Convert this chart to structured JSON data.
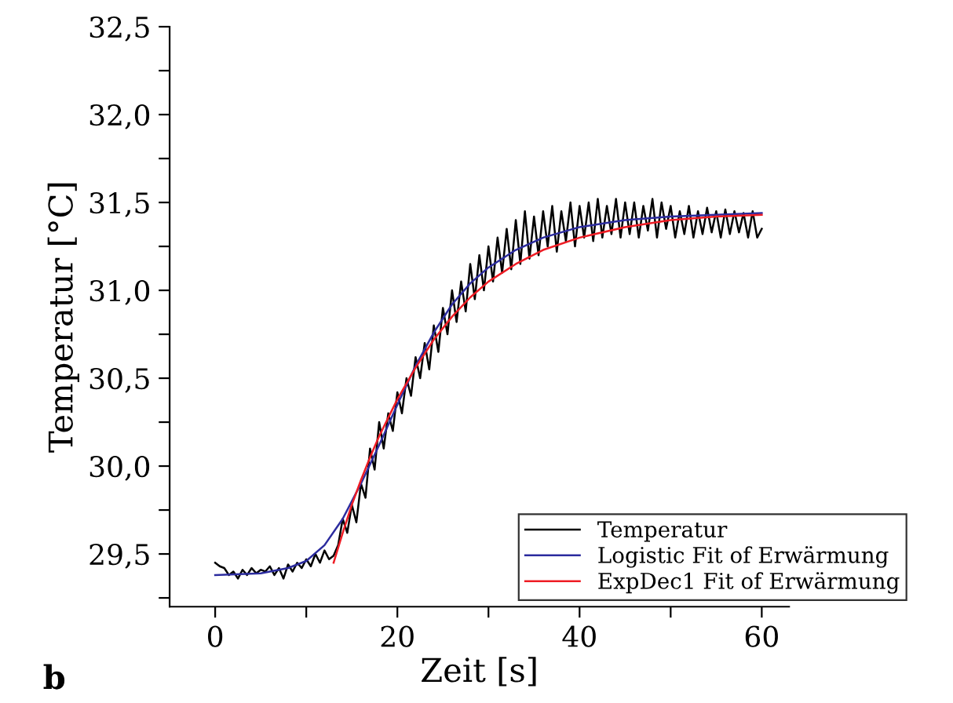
{
  "chart_data": {
    "type": "line",
    "xlabel": "Zeit [s]",
    "ylabel": "Temperatur [°C]",
    "annotations": [
      "b"
    ],
    "xlim": [
      -5,
      63
    ],
    "ylim": [
      29.2,
      32.5
    ],
    "xticks": [
      0,
      {
        "value": 10,
        "label": null
      },
      20,
      {
        "value": 30,
        "label": null
      },
      40,
      {
        "value": 50,
        "label": null
      },
      60
    ],
    "yticks": [
      {
        "value": 29.25,
        "label": null
      },
      {
        "value": 29.5,
        "label": "29,5"
      },
      {
        "value": 29.75,
        "label": null
      },
      {
        "value": 30.0,
        "label": "30,0"
      },
      {
        "value": 30.25,
        "label": null
      },
      {
        "value": 30.5,
        "label": "30,5"
      },
      {
        "value": 30.75,
        "label": null
      },
      {
        "value": 31.0,
        "label": "31,0"
      },
      {
        "value": 31.25,
        "label": null
      },
      {
        "value": 31.5,
        "label": "31,5"
      },
      {
        "value": 31.75,
        "label": null
      },
      {
        "value": 32.0,
        "label": "32,0"
      },
      {
        "value": 32.25,
        "label": null
      },
      {
        "value": 32.5,
        "label": "32,5"
      }
    ],
    "grid": false,
    "legend": "bottom right",
    "marker": "none",
    "line_style": "solid",
    "series": [
      {
        "name": "Temperatur",
        "color": "#000000",
        "x": [
          0,
          0.5,
          1,
          1.5,
          2,
          2.5,
          3,
          3.5,
          4,
          4.5,
          5,
          5.5,
          6,
          6.5,
          7,
          7.5,
          8,
          8.5,
          9,
          9.5,
          10,
          10.5,
          11,
          11.5,
          12,
          12.5,
          13,
          13.5,
          14,
          14.5,
          15,
          15.5,
          16,
          16.5,
          17,
          17.5,
          18,
          18.5,
          19,
          19.5,
          20,
          20.5,
          21,
          21.5,
          22,
          22.5,
          23,
          23.5,
          24,
          24.5,
          25,
          25.5,
          26,
          26.5,
          27,
          27.5,
          28,
          28.5,
          29,
          29.5,
          30,
          30.5,
          31,
          31.5,
          32,
          32.5,
          33,
          33.5,
          34,
          34.5,
          35,
          35.5,
          36,
          36.5,
          37,
          37.5,
          38,
          38.5,
          39,
          39.5,
          40,
          40.5,
          41,
          41.5,
          42,
          42.5,
          43,
          43.5,
          44,
          44.5,
          45,
          45.5,
          46,
          46.5,
          47,
          47.5,
          48,
          48.5,
          49,
          49.5,
          50,
          50.5,
          51,
          51.5,
          52,
          52.5,
          53,
          53.5,
          54,
          54.5,
          55,
          55.5,
          56,
          56.5,
          57,
          57.5,
          58,
          58.5,
          59,
          59.5,
          60
        ],
        "values": [
          29.45,
          29.43,
          29.42,
          29.38,
          29.4,
          29.36,
          29.41,
          29.38,
          29.42,
          29.39,
          29.41,
          29.4,
          29.43,
          29.38,
          29.42,
          29.36,
          29.44,
          29.4,
          29.45,
          29.42,
          29.47,
          29.43,
          29.5,
          29.45,
          29.52,
          29.47,
          29.49,
          29.55,
          29.7,
          29.62,
          29.78,
          29.68,
          29.9,
          29.82,
          30.1,
          29.98,
          30.25,
          30.1,
          30.3,
          30.2,
          30.42,
          30.3,
          30.5,
          30.4,
          30.62,
          30.5,
          30.7,
          30.55,
          30.8,
          30.65,
          30.9,
          30.75,
          31.0,
          30.82,
          31.05,
          30.88,
          31.15,
          30.95,
          31.2,
          31.0,
          31.25,
          31.05,
          31.3,
          31.1,
          31.35,
          31.12,
          31.4,
          31.15,
          31.45,
          31.18,
          31.42,
          31.2,
          31.45,
          31.25,
          31.48,
          31.22,
          31.45,
          31.28,
          31.5,
          31.25,
          31.48,
          31.3,
          31.5,
          31.28,
          31.52,
          31.3,
          31.48,
          31.32,
          31.52,
          31.3,
          31.5,
          31.32,
          31.5,
          31.3,
          31.48,
          31.34,
          31.52,
          31.3,
          31.5,
          31.35,
          31.48,
          31.3,
          31.45,
          31.32,
          31.48,
          31.3,
          31.45,
          31.32,
          31.47,
          31.33,
          31.45,
          31.3,
          31.46,
          31.32,
          31.45,
          31.33,
          31.44,
          31.3,
          31.45,
          31.3,
          31.35
        ]
      },
      {
        "name": "Logistic Fit of Erwärmung",
        "color": "#2b2b9e",
        "x": [
          0,
          5,
          8,
          10,
          12,
          14,
          16,
          18,
          20,
          22,
          24,
          26,
          28,
          30,
          33,
          36,
          40,
          45,
          50,
          55,
          60
        ],
        "values": [
          29.38,
          29.39,
          29.42,
          29.46,
          29.55,
          29.7,
          29.9,
          30.12,
          30.35,
          30.57,
          30.76,
          30.92,
          31.04,
          31.13,
          31.23,
          31.3,
          31.36,
          31.4,
          31.42,
          31.43,
          31.44
        ]
      },
      {
        "name": "ExpDec1 Fit of Erwärmung",
        "color": "#ee1c24",
        "x": [
          13,
          14,
          15,
          16,
          17,
          18,
          20,
          22,
          24,
          26,
          28,
          30,
          33,
          36,
          40,
          45,
          50,
          55,
          60
        ],
        "values": [
          29.45,
          29.62,
          29.78,
          29.92,
          30.05,
          30.17,
          30.38,
          30.56,
          30.72,
          30.85,
          30.96,
          31.05,
          31.15,
          31.23,
          31.3,
          31.36,
          31.4,
          31.42,
          31.43
        ]
      }
    ]
  }
}
